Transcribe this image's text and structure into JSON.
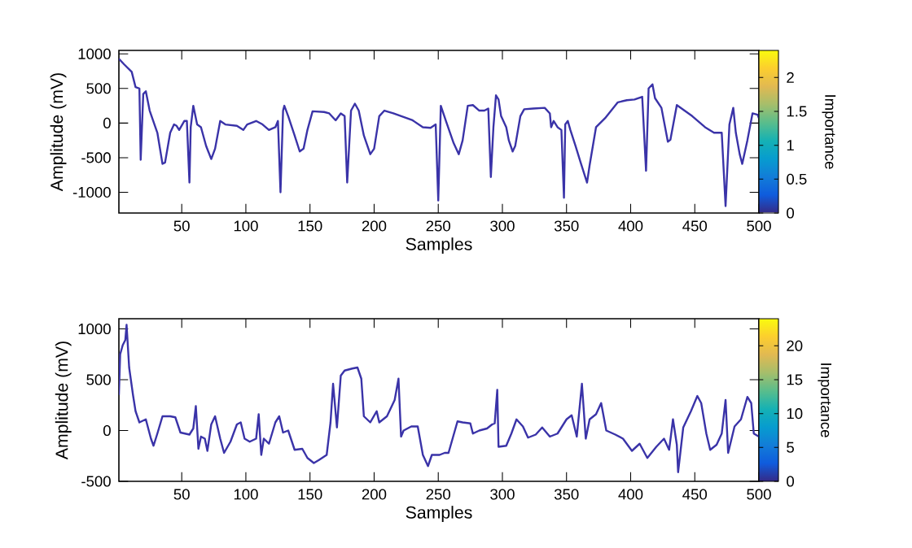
{
  "chart_data": [
    {
      "type": "line",
      "xlabel": "Samples",
      "ylabel": "Amplitude (mV)",
      "clabel": "Importance",
      "xlim": [
        1,
        500
      ],
      "xticks": [
        50,
        100,
        150,
        200,
        250,
        300,
        350,
        400,
        450,
        500
      ],
      "ylim": [
        -1300,
        1050
      ],
      "yticks": [
        -1000,
        -500,
        0,
        500,
        1000
      ],
      "clim": [
        0,
        2.4
      ],
      "cticks": [
        0,
        0.5,
        1,
        1.5,
        2
      ],
      "x": [
        1,
        5,
        11,
        14,
        17,
        18,
        20,
        22,
        25,
        31,
        35,
        37,
        41,
        44,
        46,
        48,
        52,
        54,
        56,
        57,
        59,
        62,
        65,
        69,
        73,
        76,
        80,
        84,
        93,
        98,
        101,
        108,
        113,
        118,
        123,
        125,
        127,
        129,
        130,
        133,
        138,
        142,
        145,
        148,
        152,
        161,
        165,
        170,
        174,
        177,
        179,
        182,
        185,
        188,
        192,
        197,
        200,
        204,
        208,
        215,
        230,
        238,
        244,
        248,
        250,
        252,
        256,
        262,
        266,
        269,
        273,
        277,
        282,
        286,
        289,
        291,
        293,
        295,
        297,
        299,
        303,
        305,
        308,
        310,
        314,
        317,
        324,
        333,
        337,
        338,
        340,
        343,
        346,
        348,
        349,
        351,
        353,
        357,
        361,
        366,
        368,
        373,
        380,
        390,
        397,
        403,
        409,
        412,
        414,
        417,
        419,
        424,
        429,
        431,
        436,
        442,
        448,
        458,
        465,
        471,
        474,
        477,
        480,
        482,
        485,
        487,
        491,
        495,
        499,
        500
      ],
      "series": [
        {
          "color": "#3a33a8",
          "values": [
            930,
            850,
            740,
            520,
            500,
            -530,
            420,
            460,
            180,
            -140,
            -590,
            -570,
            -140,
            -20,
            -40,
            -100,
            30,
            30,
            -860,
            -60,
            250,
            -20,
            -60,
            -330,
            -520,
            -370,
            30,
            -20,
            -40,
            -100,
            -20,
            30,
            -20,
            -100,
            -60,
            30,
            -1000,
            180,
            250,
            100,
            -180,
            -410,
            -370,
            -100,
            170,
            160,
            140,
            40,
            140,
            100,
            -860,
            180,
            280,
            180,
            -180,
            -450,
            -370,
            100,
            180,
            140,
            40,
            -60,
            -70,
            -20,
            -1120,
            250,
            30,
            -290,
            -450,
            -250,
            250,
            260,
            180,
            180,
            210,
            -780,
            -60,
            400,
            340,
            100,
            -60,
            -250,
            -410,
            -330,
            100,
            200,
            210,
            220,
            140,
            -60,
            30,
            -60,
            -100,
            -1080,
            -20,
            30,
            -100,
            -330,
            -570,
            -860,
            -610,
            -60,
            70,
            300,
            330,
            340,
            380,
            -690,
            500,
            560,
            360,
            220,
            -270,
            -240,
            260,
            180,
            100,
            -60,
            -140,
            -140,
            -1200,
            -20,
            220,
            -140,
            -450,
            -590,
            -250,
            140,
            120,
            70
          ]
        }
      ]
    },
    {
      "type": "line",
      "xlabel": "Samples",
      "ylabel": "Amplitude (mV)",
      "clabel": "Importance",
      "xlim": [
        1,
        500
      ],
      "xticks": [
        50,
        100,
        150,
        200,
        250,
        300,
        350,
        400,
        450,
        500
      ],
      "ylim": [
        -500,
        1100
      ],
      "yticks": [
        -500,
        0,
        500,
        1000
      ],
      "clim": [
        0,
        24
      ],
      "cticks": [
        0,
        5,
        10,
        15,
        20
      ],
      "x": [
        1,
        2,
        4,
        6,
        7,
        9,
        12,
        14,
        17,
        22,
        26,
        28,
        31,
        35,
        41,
        45,
        49,
        56,
        59,
        61,
        63,
        65,
        68,
        70,
        73,
        76,
        80,
        83,
        88,
        93,
        96,
        99,
        103,
        108,
        110,
        112,
        114,
        118,
        123,
        126,
        129,
        133,
        138,
        144,
        148,
        153,
        157,
        163,
        166,
        168,
        171,
        174,
        177,
        183,
        187,
        190,
        192,
        197,
        202,
        204,
        210,
        216,
        219,
        221,
        223,
        229,
        234,
        238,
        242,
        245,
        251,
        255,
        258,
        265,
        269,
        275,
        277,
        282,
        288,
        292,
        294,
        296,
        297,
        303,
        307,
        311,
        316,
        320,
        326,
        331,
        337,
        343,
        350,
        354,
        358,
        362,
        365,
        368,
        373,
        377,
        381,
        388,
        394,
        401,
        407,
        413,
        420,
        426,
        430,
        433,
        436,
        437,
        441,
        447,
        452,
        455,
        459,
        462,
        467,
        471,
        474,
        476,
        481,
        486,
        491,
        494,
        496,
        500
      ],
      "series": [
        {
          "color": "#3a33a8",
          "values": [
            350,
            750,
            840,
            890,
            1040,
            620,
            350,
            190,
            80,
            110,
            -80,
            -150,
            -30,
            140,
            140,
            130,
            -20,
            -40,
            20,
            240,
            -180,
            -60,
            -80,
            -200,
            60,
            140,
            -80,
            -220,
            -110,
            60,
            80,
            -80,
            -110,
            -80,
            160,
            -240,
            -80,
            -130,
            80,
            140,
            -20,
            0,
            -190,
            -180,
            -270,
            -320,
            -290,
            -240,
            80,
            460,
            30,
            540,
            590,
            610,
            620,
            510,
            140,
            80,
            190,
            80,
            140,
            300,
            510,
            -60,
            0,
            40,
            40,
            -240,
            -350,
            -240,
            -240,
            -220,
            -220,
            90,
            80,
            70,
            -30,
            0,
            20,
            60,
            70,
            400,
            -160,
            -150,
            -30,
            110,
            40,
            -70,
            -40,
            30,
            -60,
            -30,
            110,
            150,
            -60,
            460,
            -80,
            110,
            160,
            270,
            0,
            -40,
            -80,
            -200,
            -130,
            -270,
            -160,
            -80,
            -190,
            110,
            -140,
            -410,
            30,
            190,
            340,
            270,
            -30,
            -190,
            -140,
            -30,
            300,
            -220,
            40,
            110,
            330,
            270,
            -30,
            -60
          ]
        }
      ]
    }
  ]
}
